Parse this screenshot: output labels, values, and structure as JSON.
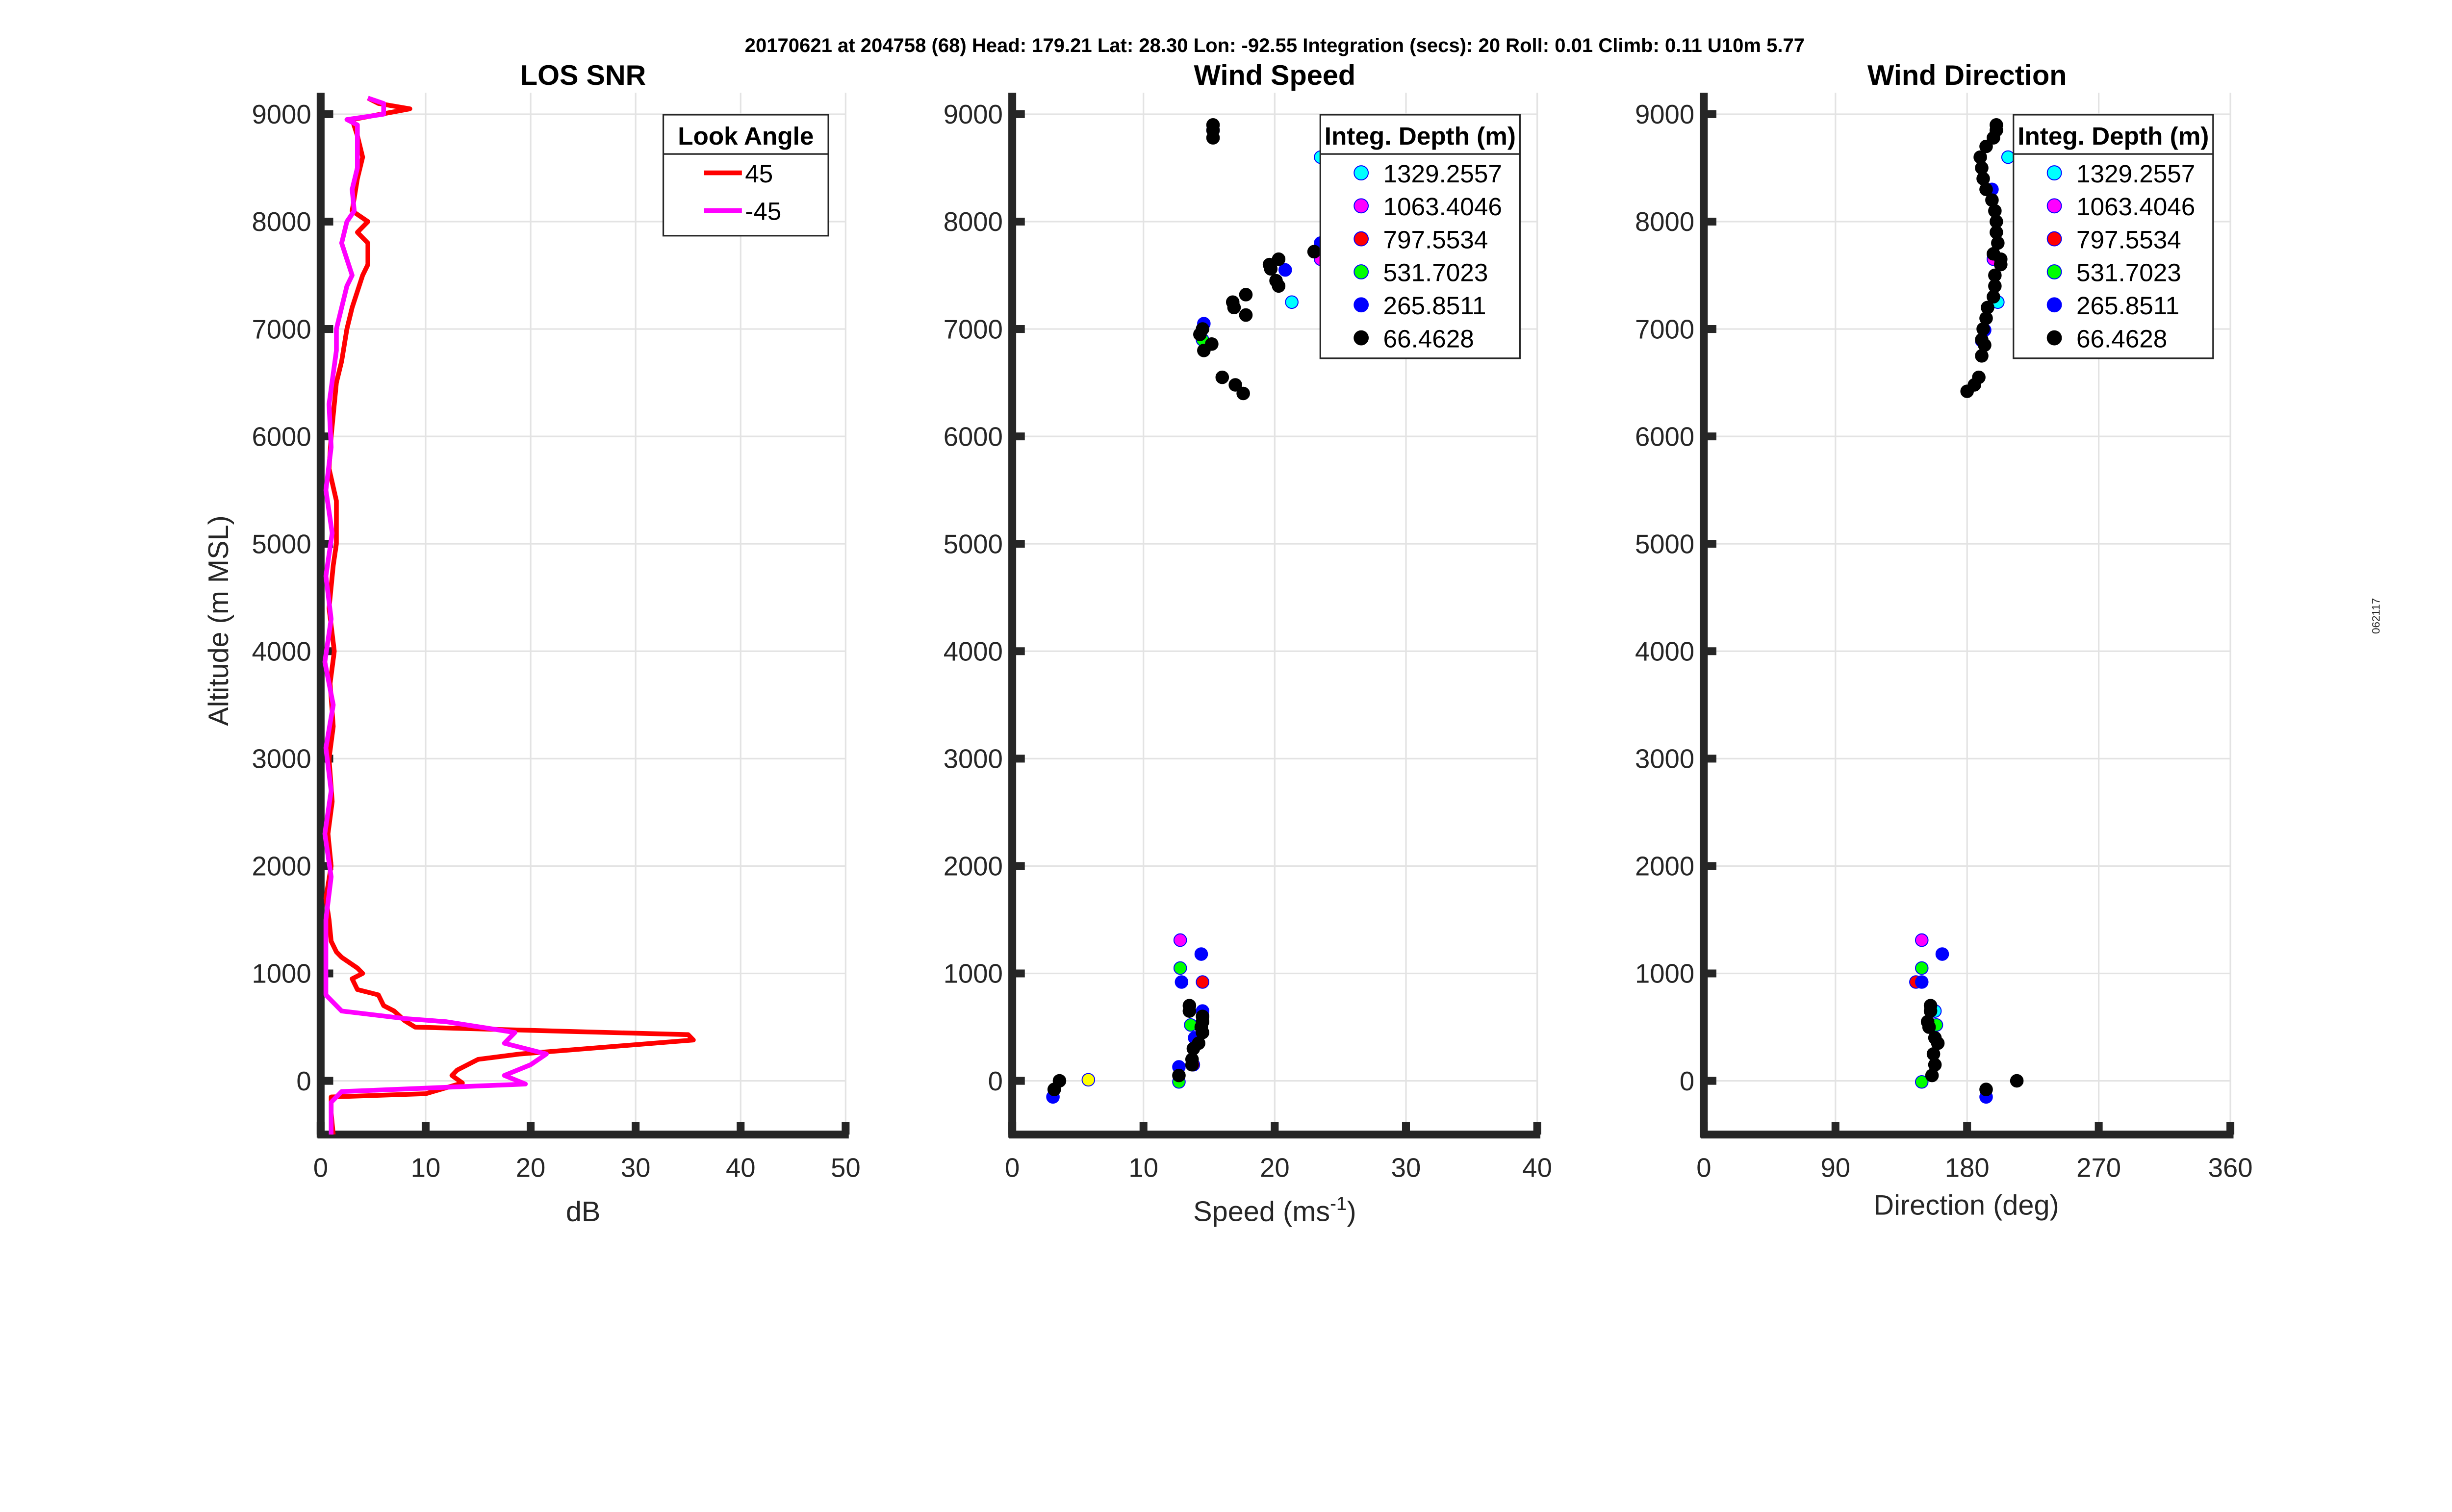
{
  "header": "20170621 at 204758 (68)  Head: 179.21  Lat: 28.30  Lon: -92.55  Integration (secs): 20  Roll: 0.01  Climb: 0.11  U10m 5.77",
  "side_label": "062117",
  "chart_data": [
    {
      "type": "line",
      "title": "LOS SNR",
      "xlabel": "dB",
      "ylabel": "Altitude (m MSL)",
      "xlim": [
        0,
        50
      ],
      "ylim": [
        -500,
        9200
      ],
      "xticks": [
        "0",
        "10",
        "20",
        "30",
        "40",
        "50"
      ],
      "yticks": [
        "0",
        "1000",
        "2000",
        "3000",
        "4000",
        "5000",
        "6000",
        "7000",
        "8000",
        "9000"
      ],
      "grid": true,
      "legend": {
        "title": "Look Angle",
        "placement": "top-right"
      },
      "series": [
        {
          "name": "45",
          "color": "#ff0000",
          "points": [
            [
              1.2,
              -500
            ],
            [
              1,
              -300
            ],
            [
              1,
              -150
            ],
            [
              10,
              -120
            ],
            [
              13.5,
              -20
            ],
            [
              12.5,
              50
            ],
            [
              13,
              100
            ],
            [
              15,
              200
            ],
            [
              19,
              250
            ],
            [
              35.5,
              380
            ],
            [
              35,
              430
            ],
            [
              20,
              470
            ],
            [
              9,
              500
            ],
            [
              8,
              560
            ],
            [
              7,
              650
            ],
            [
              6,
              700
            ],
            [
              5.5,
              800
            ],
            [
              3.5,
              850
            ],
            [
              3,
              950
            ],
            [
              4,
              1000
            ],
            [
              3.5,
              1050
            ],
            [
              2,
              1150
            ],
            [
              1.5,
              1200
            ],
            [
              1,
              1300
            ],
            [
              0.8,
              1500
            ],
            [
              0.5,
              1700
            ],
            [
              1,
              2000
            ],
            [
              0.7,
              2300
            ],
            [
              1.1,
              2600
            ],
            [
              0.8,
              3000
            ],
            [
              1.2,
              3300
            ],
            [
              0.9,
              3700
            ],
            [
              1.3,
              4000
            ],
            [
              0.8,
              4400
            ],
            [
              1.2,
              4800
            ],
            [
              1.5,
              5000
            ],
            [
              1.5,
              5400
            ],
            [
              0.8,
              5700
            ],
            [
              1,
              6000
            ],
            [
              1.5,
              6500
            ],
            [
              2,
              6700
            ],
            [
              2.5,
              7000
            ],
            [
              3,
              7200
            ],
            [
              4,
              7500
            ],
            [
              4.5,
              7600
            ],
            [
              4.5,
              7800
            ],
            [
              3.5,
              7900
            ],
            [
              4.5,
              8000
            ],
            [
              3,
              8100
            ],
            [
              3.5,
              8400
            ],
            [
              4,
              8600
            ],
            [
              3.5,
              8800
            ],
            [
              3,
              8950
            ],
            [
              8.5,
              9050
            ],
            [
              5.5,
              9100
            ],
            [
              4.5,
              9150
            ]
          ]
        },
        {
          "name": "-45",
          "color": "#ff00ff",
          "points": [
            [
              1,
              -500
            ],
            [
              1,
              -200
            ],
            [
              2,
              -100
            ],
            [
              19.5,
              -30
            ],
            [
              17.5,
              50
            ],
            [
              20,
              150
            ],
            [
              21.5,
              250
            ],
            [
              17.5,
              350
            ],
            [
              18.5,
              450
            ],
            [
              12,
              550
            ],
            [
              8,
              580
            ],
            [
              2,
              650
            ],
            [
              0.5,
              800
            ],
            [
              0.5,
              1000
            ],
            [
              0.5,
              1500
            ],
            [
              1,
              1900
            ],
            [
              0.4,
              2300
            ],
            [
              1,
              2700
            ],
            [
              0.5,
              3100
            ],
            [
              1.2,
              3500
            ],
            [
              0.4,
              3900
            ],
            [
              1,
              4300
            ],
            [
              0.5,
              4700
            ],
            [
              1.1,
              5100
            ],
            [
              0.5,
              5500
            ],
            [
              1,
              5900
            ],
            [
              0.8,
              6300
            ],
            [
              1.5,
              6800
            ],
            [
              1.5,
              7000
            ],
            [
              2,
              7200
            ],
            [
              2.5,
              7400
            ],
            [
              3,
              7500
            ],
            [
              2,
              7800
            ],
            [
              2.5,
              8000
            ],
            [
              3.2,
              8100
            ],
            [
              3,
              8300
            ],
            [
              3.5,
              8500
            ],
            [
              3.5,
              8700
            ],
            [
              3.5,
              8900
            ],
            [
              2.5,
              8950
            ],
            [
              6,
              9000
            ],
            [
              6,
              9100
            ],
            [
              4.5,
              9150
            ]
          ]
        }
      ]
    },
    {
      "type": "scatter",
      "title": "Wind Speed",
      "xlabel": "Speed (ms",
      "xlabel_sup": "-1",
      "xlabel_end": ")",
      "xlim": [
        0,
        40
      ],
      "ylim": [
        -500,
        9200
      ],
      "xticks": [
        "0",
        "10",
        "20",
        "30",
        "40"
      ],
      "yticks": [
        "0",
        "1000",
        "2000",
        "3000",
        "4000",
        "5000",
        "6000",
        "7000",
        "8000",
        "9000"
      ],
      "grid": true,
      "legend": {
        "title": "Integ. Depth (m)",
        "placement": "top-right"
      },
      "series": [
        {
          "name": "1329.2557",
          "color": "#00ffff",
          "points": [
            [
              23.5,
              8600
            ],
            [
              21.3,
              7250
            ]
          ]
        },
        {
          "name": "1063.4046",
          "color": "#ff00ff",
          "points": [
            [
              23.5,
              7650
            ],
            [
              12.8,
              1310
            ]
          ]
        },
        {
          "name": "797.5534",
          "color": "#ff0000",
          "points": [
            [
              14.5,
              920
            ],
            [
              13.8,
              150
            ]
          ]
        },
        {
          "name": "531.7023",
          "color": "#00ff00",
          "points": [
            [
              14.5,
              6900
            ],
            [
              12.8,
              1050
            ],
            [
              13.6,
              520
            ],
            [
              12.7,
              -10
            ]
          ]
        },
        {
          "name": "265.8511",
          "color": "#0000ff",
          "points": [
            [
              15.3,
              8850
            ],
            [
              23.5,
              7800
            ],
            [
              20.8,
              7550
            ],
            [
              14.6,
              7050
            ],
            [
              12.9,
              920
            ],
            [
              14.4,
              1180
            ],
            [
              14.5,
              650
            ],
            [
              13.9,
              400
            ],
            [
              12.7,
              130
            ],
            [
              3.1,
              -150
            ]
          ]
        },
        {
          "name": "66.4628",
          "color": "#000000",
          "points": [
            [
              15.3,
              8900
            ],
            [
              15.3,
              8850
            ],
            [
              15.3,
              8780
            ],
            [
              14.5,
              7000
            ],
            [
              14.3,
              6950
            ],
            [
              15.2,
              6860
            ],
            [
              14.6,
              6800
            ],
            [
              16,
              6550
            ],
            [
              17,
              6480
            ],
            [
              17.6,
              6400
            ],
            [
              16.8,
              7250
            ],
            [
              16.9,
              7200
            ],
            [
              17.8,
              7320
            ],
            [
              17.8,
              7130
            ],
            [
              19.7,
              7560
            ],
            [
              19.6,
              7600
            ],
            [
              20.3,
              7650
            ],
            [
              20.1,
              7450
            ],
            [
              20.3,
              7400
            ],
            [
              23,
              7720
            ],
            [
              13.5,
              700
            ],
            [
              13.5,
              650
            ],
            [
              14.5,
              600
            ],
            [
              14.5,
              550
            ],
            [
              14.4,
              500
            ],
            [
              14.5,
              450
            ],
            [
              14.2,
              350
            ],
            [
              13.8,
              300
            ],
            [
              13.7,
              200
            ],
            [
              13.7,
              150
            ],
            [
              12.7,
              50
            ],
            [
              3.6,
              0
            ],
            [
              3.2,
              -80
            ]
          ]
        },
        {
          "name": "",
          "color": "#ffff00",
          "points": [
            [
              5.8,
              10
            ]
          ]
        }
      ]
    },
    {
      "type": "scatter",
      "title": "Wind Direction",
      "xlabel": "Direction (deg)",
      "xlim": [
        0,
        360
      ],
      "ylim": [
        -500,
        9200
      ],
      "xticks": [
        "0",
        "90",
        "180",
        "270",
        "360"
      ],
      "yticks": [
        "0",
        "1000",
        "2000",
        "3000",
        "4000",
        "5000",
        "6000",
        "7000",
        "8000",
        "9000"
      ],
      "grid": true,
      "legend": {
        "title": "Integ. Depth (m)",
        "placement": "top-right"
      },
      "series": [
        {
          "name": "1329.2557",
          "color": "#00ffff",
          "points": [
            [
              208,
              8600
            ],
            [
              201,
              7250
            ],
            [
              158,
              650
            ]
          ]
        },
        {
          "name": "1063.4046",
          "color": "#ff00ff",
          "points": [
            [
              198,
              7650
            ],
            [
              149,
              1310
            ]
          ]
        },
        {
          "name": "797.5534",
          "color": "#ff0000",
          "points": [
            [
              145,
              920
            ]
          ]
        },
        {
          "name": "531.7023",
          "color": "#00ff00",
          "points": [
            [
              190,
              6890
            ],
            [
              149,
              1050
            ],
            [
              159,
              520
            ],
            [
              149,
              -10
            ]
          ]
        },
        {
          "name": "265.8511",
          "color": "#0000ff",
          "points": [
            [
              197,
              8300
            ],
            [
              192,
              6990
            ],
            [
              163,
              1180
            ],
            [
              149,
              920
            ],
            [
              193,
              -150
            ]
          ]
        },
        {
          "name": "66.4628",
          "color": "#000000",
          "points": [
            [
              200,
              8900
            ],
            [
              200,
              8850
            ],
            [
              198,
              8780
            ],
            [
              193,
              8700
            ],
            [
              189,
              8600
            ],
            [
              190,
              8500
            ],
            [
              191,
              8400
            ],
            [
              193,
              8300
            ],
            [
              197,
              8200
            ],
            [
              199,
              8100
            ],
            [
              200,
              8000
            ],
            [
              200,
              7900
            ],
            [
              201,
              7800
            ],
            [
              198,
              7700
            ],
            [
              203,
              7650
            ],
            [
              203,
              7600
            ],
            [
              199,
              7500
            ],
            [
              199,
              7400
            ],
            [
              198,
              7300
            ],
            [
              194,
              7200
            ],
            [
              193,
              7100
            ],
            [
              191,
              7000
            ],
            [
              190,
              6900
            ],
            [
              192,
              6850
            ],
            [
              190,
              6750
            ],
            [
              188,
              6550
            ],
            [
              185,
              6480
            ],
            [
              180,
              6420
            ],
            [
              155,
              700
            ],
            [
              155,
              650
            ],
            [
              153,
              550
            ],
            [
              154,
              500
            ],
            [
              158,
              400
            ],
            [
              160,
              350
            ],
            [
              157,
              250
            ],
            [
              158,
              150
            ],
            [
              156,
              50
            ],
            [
              193,
              -80
            ],
            [
              214,
              0
            ]
          ]
        }
      ]
    }
  ]
}
